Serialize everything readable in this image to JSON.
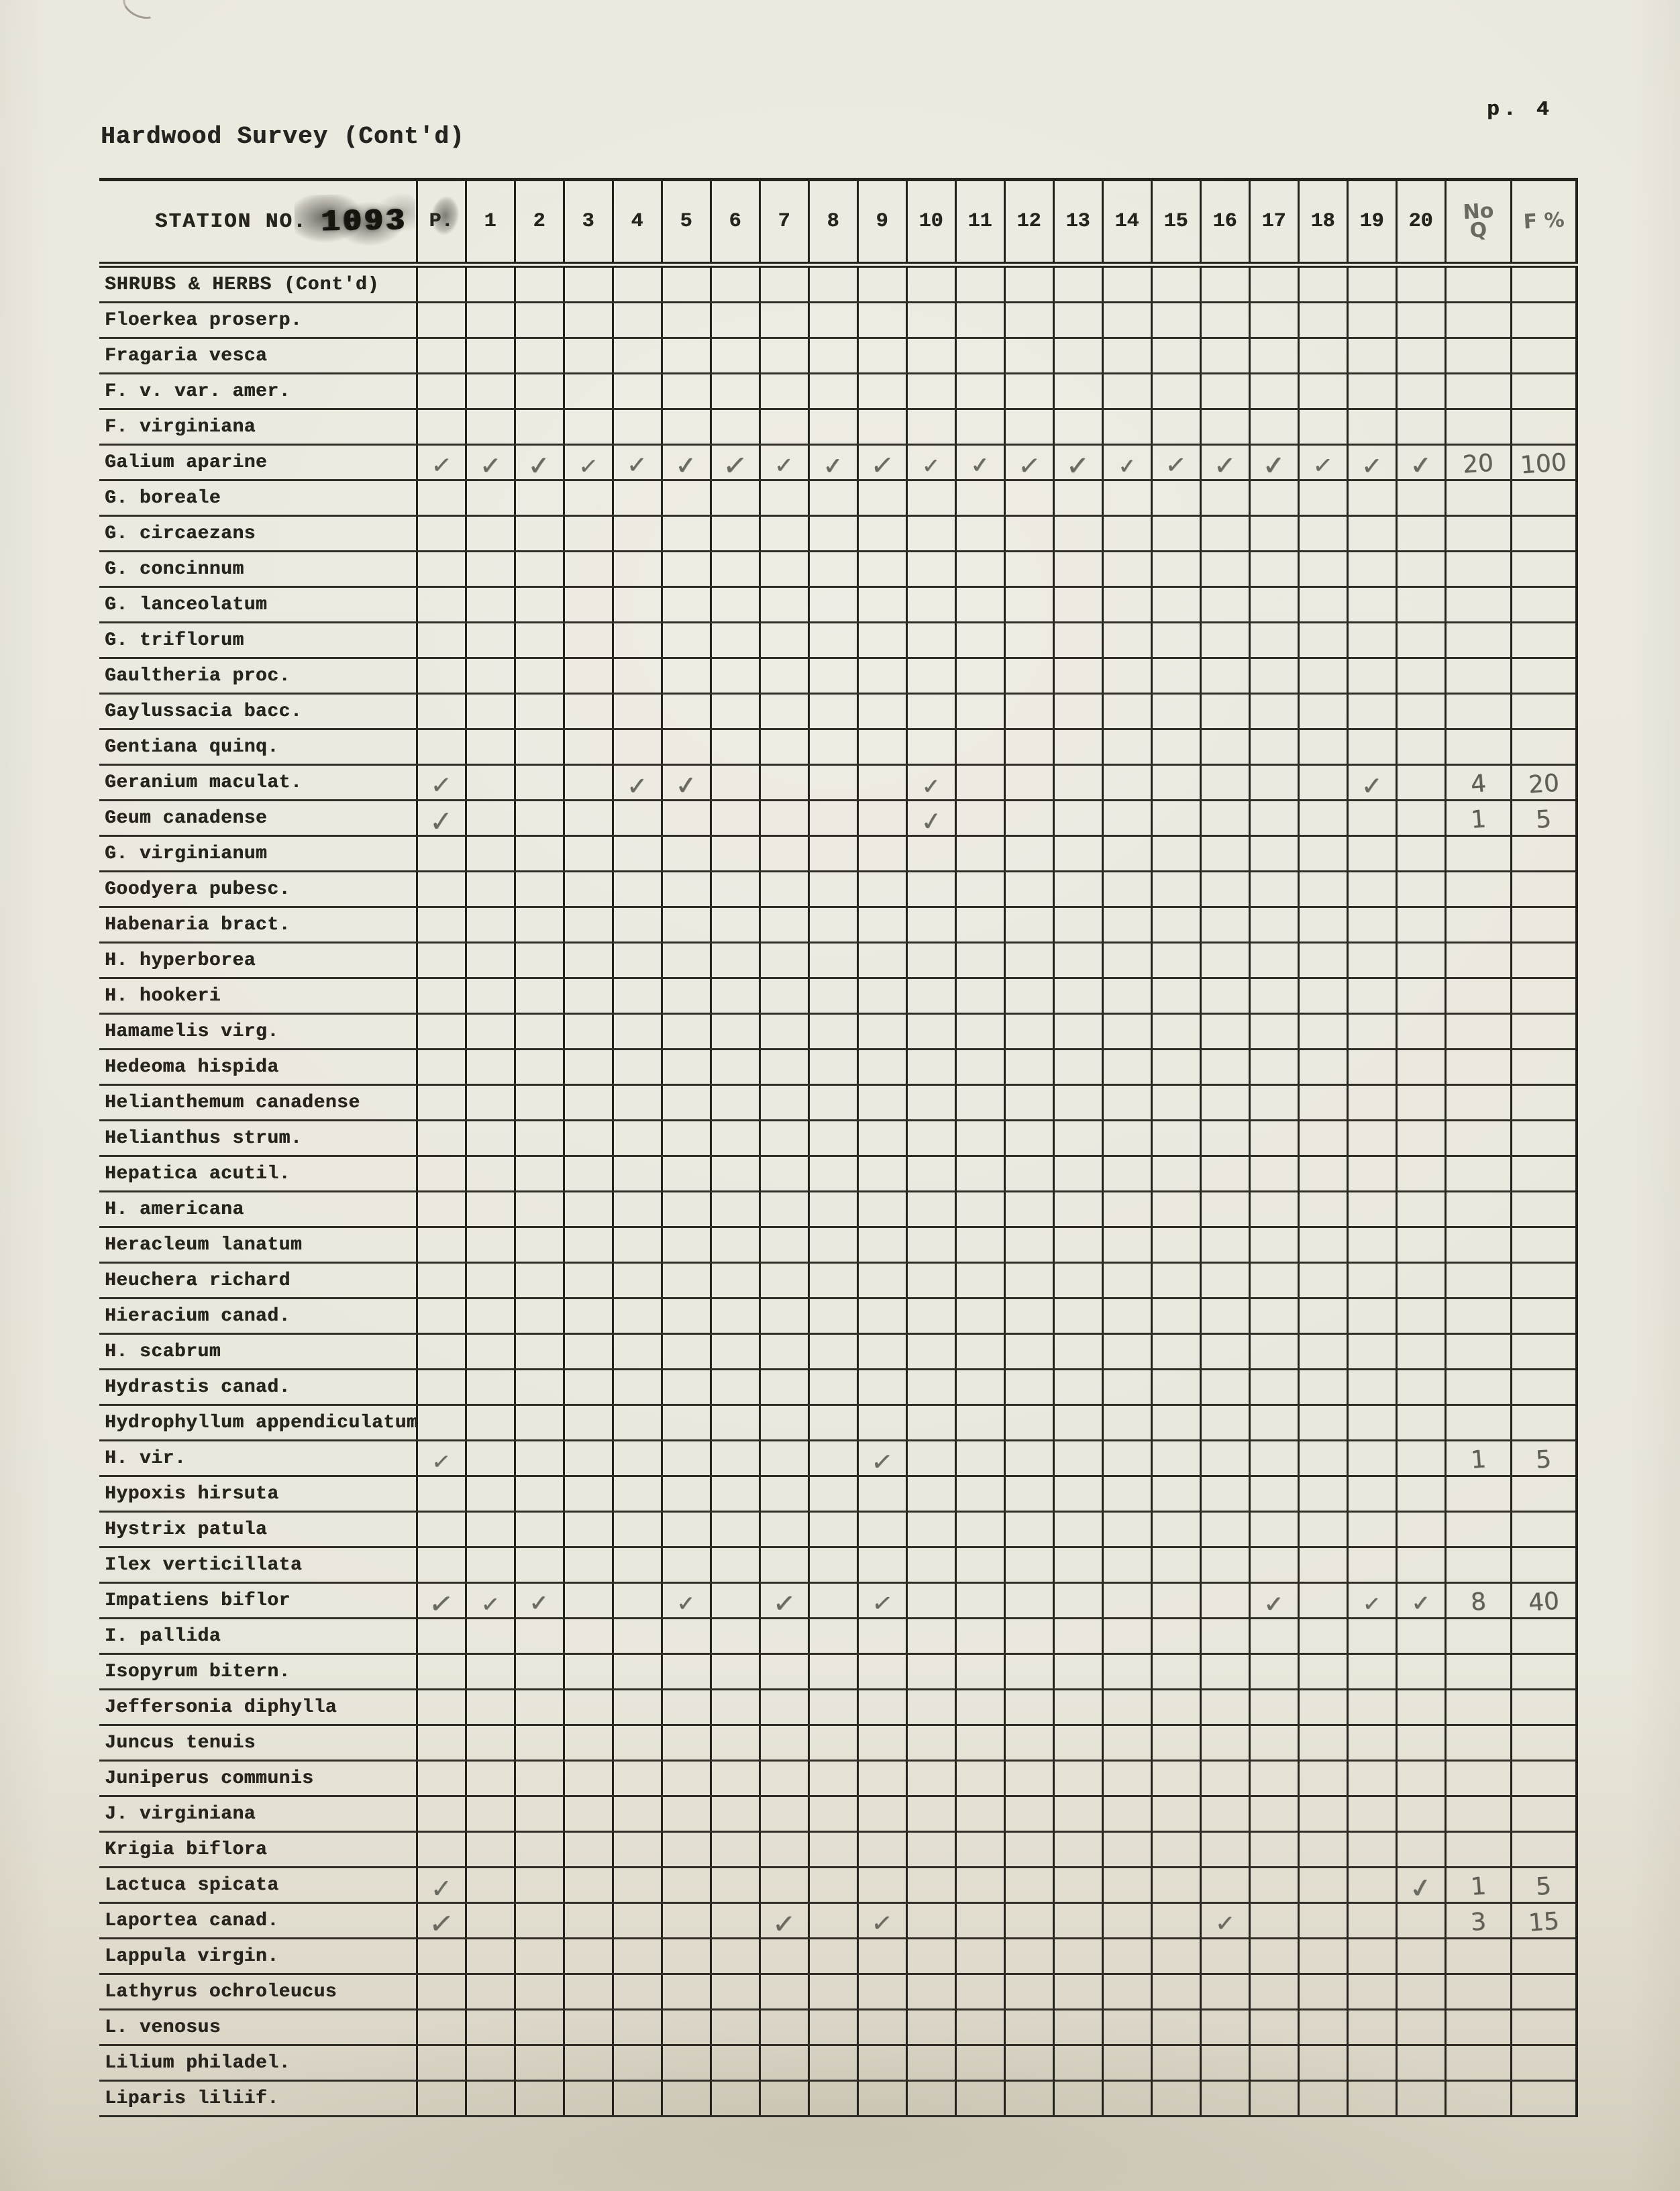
{
  "page": {
    "title": "Hardwood Survey (Cont'd)",
    "page_number": "p. 4",
    "station_label": "STATION NO.",
    "station_number": "1093"
  },
  "colors": {
    "paper": "#e9e6db",
    "ink": "#26241d",
    "pencil": "#6b6a60"
  },
  "marks": {
    "check": "✓"
  },
  "table": {
    "station_columns": [
      "P.",
      "1",
      "2",
      "3",
      "4",
      "5",
      "6",
      "7",
      "8",
      "9",
      "10",
      "11",
      "12",
      "13",
      "14",
      "15",
      "16",
      "17",
      "18",
      "19",
      "20"
    ],
    "no_q_label_lines": [
      "No",
      "Q"
    ],
    "f_pct_label": "F %",
    "rows": [
      {
        "species": "SHRUBS & HERBS (Cont'd)",
        "section": true,
        "checks": [],
        "no_q": "",
        "f_pct": ""
      },
      {
        "species": "Floerkea proserp.",
        "checks": [],
        "no_q": "",
        "f_pct": ""
      },
      {
        "species": "Fragaria vesca",
        "checks": [],
        "no_q": "",
        "f_pct": ""
      },
      {
        "species": "F. v. var. amer.",
        "checks": [],
        "no_q": "",
        "f_pct": ""
      },
      {
        "species": "F. virginiana",
        "checks": [],
        "no_q": "",
        "f_pct": ""
      },
      {
        "species": "Galium aparine",
        "checks": [
          "P.",
          "1",
          "2",
          "3",
          "4",
          "5",
          "6",
          "7",
          "8",
          "9",
          "10",
          "11",
          "12",
          "13",
          "14",
          "15",
          "16",
          "17",
          "18",
          "19",
          "20"
        ],
        "no_q": "20",
        "f_pct": "100"
      },
      {
        "species": "G. boreale",
        "checks": [],
        "no_q": "",
        "f_pct": ""
      },
      {
        "species": "G. circaezans",
        "checks": [],
        "no_q": "",
        "f_pct": ""
      },
      {
        "species": "G. concinnum",
        "checks": [],
        "no_q": "",
        "f_pct": ""
      },
      {
        "species": "G. lanceolatum",
        "checks": [],
        "no_q": "",
        "f_pct": ""
      },
      {
        "species": "G. triflorum",
        "checks": [],
        "no_q": "",
        "f_pct": ""
      },
      {
        "species": "Gaultheria proc.",
        "checks": [],
        "no_q": "",
        "f_pct": ""
      },
      {
        "species": "Gaylussacia bacc.",
        "checks": [],
        "no_q": "",
        "f_pct": ""
      },
      {
        "species": "Gentiana quinq.",
        "checks": [],
        "no_q": "",
        "f_pct": ""
      },
      {
        "species": "Geranium maculat.",
        "checks": [
          "P.",
          "4",
          "5",
          "10",
          "19"
        ],
        "no_q": "4",
        "f_pct": "20"
      },
      {
        "species": "Geum canadense",
        "checks": [
          "P.",
          "10"
        ],
        "no_q": "1",
        "f_pct": "5"
      },
      {
        "species": "G. virginianum",
        "checks": [],
        "no_q": "",
        "f_pct": ""
      },
      {
        "species": "Goodyera pubesc.",
        "checks": [],
        "no_q": "",
        "f_pct": ""
      },
      {
        "species": "Habenaria bract.",
        "checks": [],
        "no_q": "",
        "f_pct": ""
      },
      {
        "species": "H. hyperborea",
        "checks": [],
        "no_q": "",
        "f_pct": ""
      },
      {
        "species": "H. hookeri",
        "checks": [],
        "no_q": "",
        "f_pct": ""
      },
      {
        "species": "Hamamelis virg.",
        "checks": [],
        "no_q": "",
        "f_pct": ""
      },
      {
        "species": "Hedeoma hispida",
        "checks": [],
        "no_q": "",
        "f_pct": ""
      },
      {
        "species": "Helianthemum canadense",
        "checks": [],
        "no_q": "",
        "f_pct": ""
      },
      {
        "species": "Helianthus strum.",
        "checks": [],
        "no_q": "",
        "f_pct": ""
      },
      {
        "species": "Hepatica acutil.",
        "checks": [],
        "no_q": "",
        "f_pct": ""
      },
      {
        "species": "H. americana",
        "checks": [],
        "no_q": "",
        "f_pct": ""
      },
      {
        "species": "Heracleum lanatum",
        "checks": [],
        "no_q": "",
        "f_pct": ""
      },
      {
        "species": "Heuchera richard",
        "checks": [],
        "no_q": "",
        "f_pct": ""
      },
      {
        "species": "Hieracium canad.",
        "checks": [],
        "no_q": "",
        "f_pct": ""
      },
      {
        "species": "H. scabrum",
        "checks": [],
        "no_q": "",
        "f_pct": ""
      },
      {
        "species": "Hydrastis canad.",
        "checks": [],
        "no_q": "",
        "f_pct": ""
      },
      {
        "species": "Hydrophyllum appendiculatum",
        "checks": [],
        "no_q": "",
        "f_pct": ""
      },
      {
        "species": "H. vir.",
        "checks": [
          "P.",
          "9"
        ],
        "no_q": "1",
        "f_pct": "5"
      },
      {
        "species": "Hypoxis hirsuta",
        "checks": [],
        "no_q": "",
        "f_pct": ""
      },
      {
        "species": "Hystrix patula",
        "checks": [],
        "no_q": "",
        "f_pct": ""
      },
      {
        "species": "Ilex verticillata",
        "checks": [],
        "no_q": "",
        "f_pct": ""
      },
      {
        "species": "Impatiens biflor",
        "checks": [
          "P.",
          "1",
          "2",
          "5",
          "7",
          "9",
          "17",
          "19",
          "20"
        ],
        "no_q": "8",
        "f_pct": "40"
      },
      {
        "species": "I. pallida",
        "checks": [],
        "no_q": "",
        "f_pct": ""
      },
      {
        "species": "Isopyrum bitern.",
        "checks": [],
        "no_q": "",
        "f_pct": ""
      },
      {
        "species": "Jeffersonia diphylla",
        "checks": [],
        "no_q": "",
        "f_pct": ""
      },
      {
        "species": "Juncus tenuis",
        "checks": [],
        "no_q": "",
        "f_pct": ""
      },
      {
        "species": "Juniperus communis",
        "checks": [],
        "no_q": "",
        "f_pct": ""
      },
      {
        "species": "J. virginiana",
        "checks": [],
        "no_q": "",
        "f_pct": ""
      },
      {
        "species": "Krigia biflora",
        "checks": [],
        "no_q": "",
        "f_pct": ""
      },
      {
        "species": "Lactuca spicata",
        "checks": [
          "P.",
          "20"
        ],
        "no_q": "1",
        "f_pct": "5"
      },
      {
        "species": "Laportea canad.",
        "checks": [
          "P.",
          "7",
          "9",
          "16"
        ],
        "no_q": "3",
        "f_pct": "15"
      },
      {
        "species": "Lappula virgin.",
        "checks": [],
        "no_q": "",
        "f_pct": ""
      },
      {
        "species": "Lathyrus ochroleucus",
        "checks": [],
        "no_q": "",
        "f_pct": ""
      },
      {
        "species": "L. venosus",
        "checks": [],
        "no_q": "",
        "f_pct": ""
      },
      {
        "species": "Lilium philadel.",
        "checks": [],
        "no_q": "",
        "f_pct": ""
      },
      {
        "species": "Liparis liliif.",
        "checks": [],
        "no_q": "",
        "f_pct": ""
      }
    ]
  }
}
